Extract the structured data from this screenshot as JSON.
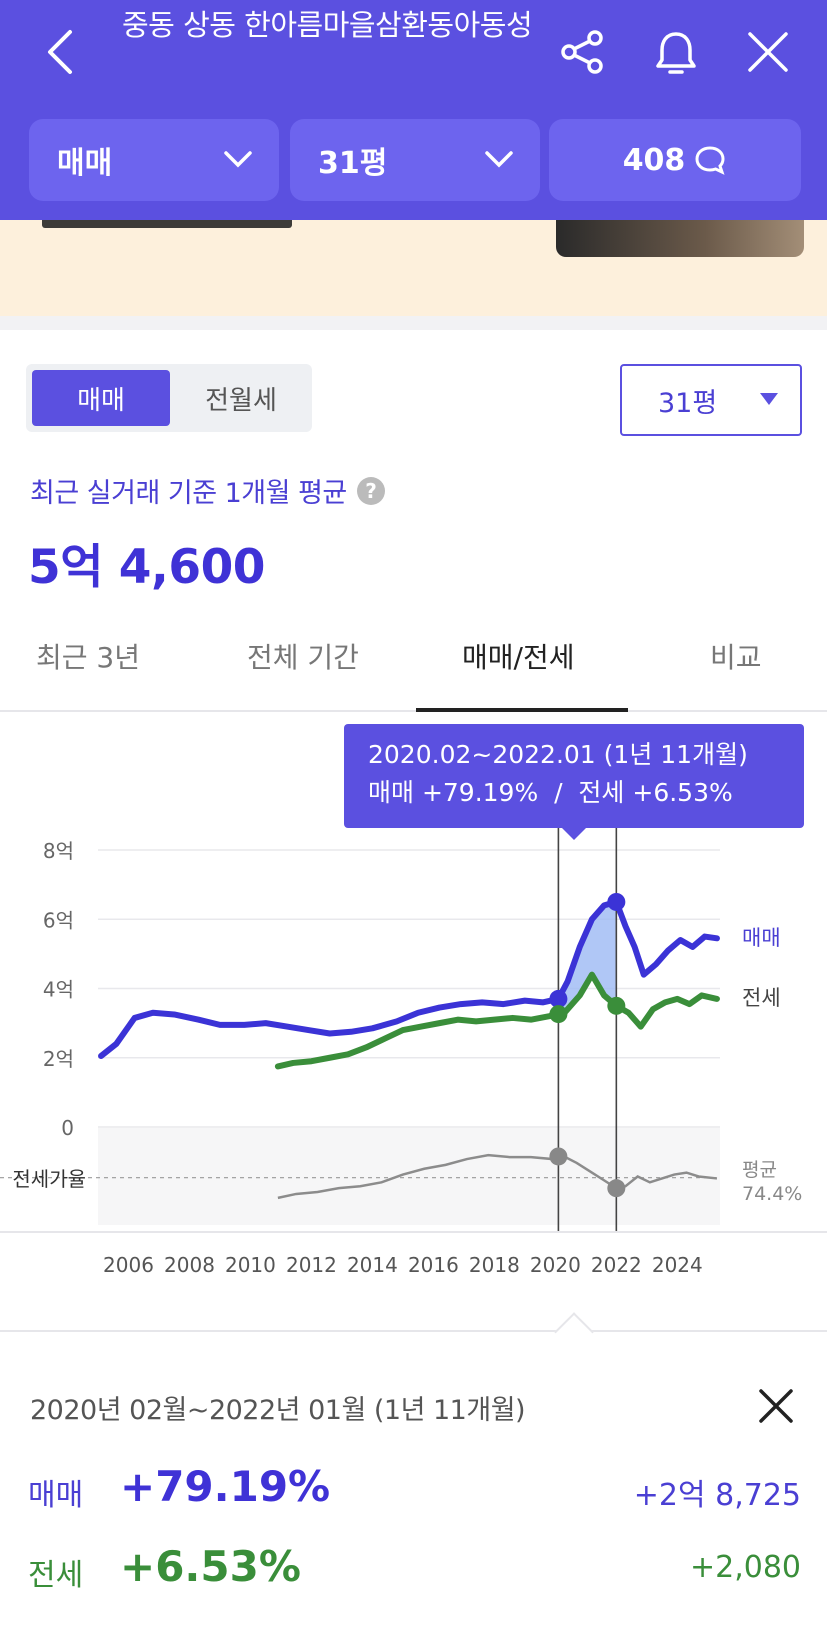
{
  "header": {
    "title": "중동 상동 한아름마을삼환동아동성",
    "trade_type": "매매",
    "area": "31평",
    "comment_count": "408",
    "icons": [
      "back-icon",
      "share-icon",
      "bell-icon",
      "close-icon",
      "chevron-down-icon",
      "chat-bubble-icon"
    ]
  },
  "toggle": {
    "sale": "매매",
    "rent": "전월세"
  },
  "size_select": "31평",
  "summary": {
    "label": "최근 실거래 기준 1개월 평균",
    "help": "?",
    "price": "5억 4,600"
  },
  "tabs": [
    "최근 3년",
    "전체 기간",
    "매매/전세",
    "비교"
  ],
  "tooltip": {
    "period": "2020.02~2022.01 (1년 11개월)",
    "summary": "매매 +79.19%  /  전세 +6.53%"
  },
  "chart_data": {
    "type": "line",
    "title": "",
    "x_ticks": [
      "2006",
      "2008",
      "2010",
      "2012",
      "2014",
      "2016",
      "2018",
      "2020",
      "2022",
      "2024"
    ],
    "y_ticks": [
      "0",
      "2억",
      "4억",
      "6억",
      "8억"
    ],
    "ylim": [
      0,
      8
    ],
    "series": [
      {
        "name": "매매",
        "color": "#3b33d6",
        "x": [
          2005.1,
          2005.6,
          2006.2,
          2006.8,
          2007.5,
          2008.3,
          2009,
          2009.8,
          2010.5,
          2011.2,
          2011.9,
          2012.6,
          2013.3,
          2014,
          2014.8,
          2015.5,
          2016.2,
          2016.9,
          2017.6,
          2018.3,
          2019,
          2019.6,
          2020.1,
          2020.4,
          2020.8,
          2021.2,
          2021.6,
          2022,
          2022.3,
          2022.6,
          2022.9,
          2023.3,
          2023.7,
          2024.1,
          2024.5,
          2024.9,
          2025.3
        ],
        "values": [
          2.05,
          2.4,
          3.15,
          3.3,
          3.25,
          3.1,
          2.95,
          2.95,
          3.0,
          2.9,
          2.8,
          2.7,
          2.75,
          2.85,
          3.05,
          3.3,
          3.45,
          3.55,
          3.6,
          3.55,
          3.65,
          3.6,
          3.7,
          4.2,
          5.2,
          6.0,
          6.4,
          6.5,
          5.8,
          5.2,
          4.4,
          4.7,
          5.1,
          5.4,
          5.2,
          5.5,
          5.45
        ]
      },
      {
        "name": "전세",
        "color": "#3a8e3a",
        "x": [
          2010.9,
          2011.4,
          2012,
          2012.6,
          2013.2,
          2013.8,
          2014.4,
          2015,
          2015.6,
          2016.2,
          2016.8,
          2017.4,
          2018,
          2018.6,
          2019.2,
          2019.8,
          2020.3,
          2020.8,
          2021.2,
          2021.6,
          2022,
          2022.4,
          2022.8,
          2023.2,
          2023.6,
          2024,
          2024.4,
          2024.8,
          2025.3
        ],
        "values": [
          1.75,
          1.85,
          1.9,
          2.0,
          2.1,
          2.3,
          2.55,
          2.8,
          2.9,
          3.0,
          3.1,
          3.05,
          3.1,
          3.15,
          3.1,
          3.2,
          3.3,
          3.8,
          4.4,
          3.8,
          3.5,
          3.3,
          2.9,
          3.4,
          3.6,
          3.7,
          3.55,
          3.8,
          3.7
        ]
      }
    ],
    "ratio_series": {
      "name": "전세가율",
      "color": "#8c8c8c",
      "x": [
        2010.9,
        2011.5,
        2012.2,
        2012.9,
        2013.6,
        2014.3,
        2015,
        2015.7,
        2016.4,
        2017.1,
        2017.8,
        2018.5,
        2019.2,
        2019.9,
        2020.2,
        2020.7,
        2021.1,
        2021.6,
        2022,
        2022.3,
        2022.7,
        2023.1,
        2023.5,
        2023.9,
        2024.3,
        2024.7,
        2025.3
      ],
      "values": [
        64,
        66,
        67,
        69,
        70,
        72,
        76,
        79,
        81,
        84,
        86,
        85,
        85,
        84,
        86,
        82,
        78,
        73,
        69,
        70,
        75,
        72,
        74,
        76,
        77,
        75,
        74
      ]
    },
    "ratio_label": "전세가율",
    "avg_label": "평균",
    "avg_value": "74.4%",
    "selection": {
      "start": 2020.1,
      "end": 2022.0
    }
  },
  "detail": {
    "period": "2020년 02월~2022년 01월 (1년 11개월)",
    "sale_label": "매매",
    "sale_pct": "+79.19%",
    "sale_amount": "+2억 8,725",
    "rent_label": "전세",
    "rent_pct": "+6.53%",
    "rent_amount": "+2,080"
  }
}
